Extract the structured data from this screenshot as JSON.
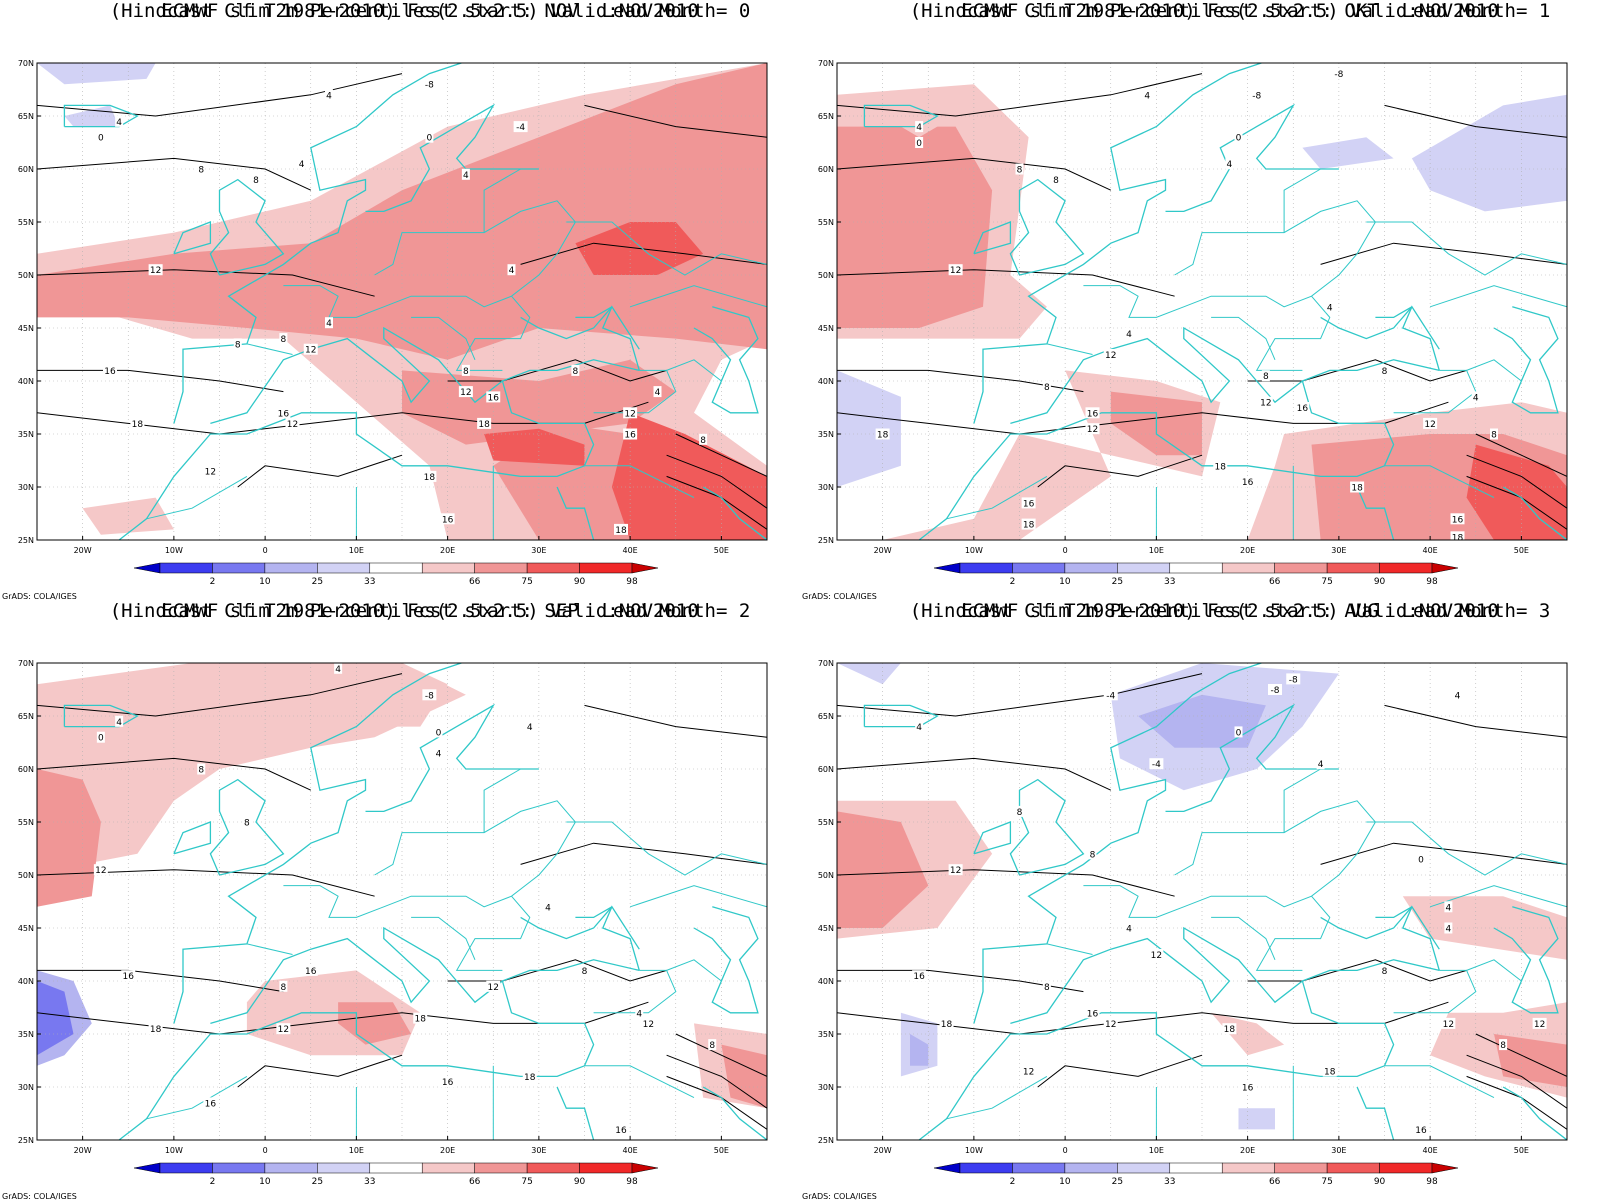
{
  "credit": "GrADS: COLA/IGES",
  "axes": {
    "lat_labels": [
      "70N",
      "65N",
      "60N",
      "55N",
      "50N",
      "45N",
      "40N",
      "35N",
      "30N",
      "25N"
    ],
    "lon_labels": [
      "20W",
      "10W",
      "0",
      "10E",
      "20E",
      "30E",
      "40E",
      "50E"
    ]
  },
  "colorbar": {
    "labels": [
      "2",
      "10",
      "25",
      "33",
      "66",
      "75",
      "90",
      "98"
    ],
    "colors": [
      "#0000c8",
      "#3c3cf0",
      "#7878f0",
      "#b4b4f0",
      "#d2d2f5",
      "#ffffff",
      "#f5c8c8",
      "#f09696",
      "#f05a5a",
      "#f02828",
      "#c80000"
    ]
  },
  "colors": {
    "coast": "#30c8c8",
    "contour": "#000000",
    "grid": "#b0b0b0"
  },
  "panels": [
    {
      "title1": "ECMWF sf T2m Percentiles(2.5x2.5) Valid:NOV2010",
      "title2": "(Hindcast Clim 1981-2010) Fcst start: NOV  Lead Month= 0",
      "contour_labels": [
        {
          "t": "4",
          "lon": 7,
          "lat": 67
        },
        {
          "t": "4",
          "lon": -16,
          "lat": 64.5
        },
        {
          "t": "0",
          "lon": -18,
          "lat": 63
        },
        {
          "t": "-8",
          "lon": 18,
          "lat": 68
        },
        {
          "t": "0",
          "lon": 18,
          "lat": 63
        },
        {
          "t": "-4",
          "lon": 28,
          "lat": 64
        },
        {
          "t": "4",
          "lon": 4,
          "lat": 60.5
        },
        {
          "t": "8",
          "lon": -7,
          "lat": 60
        },
        {
          "t": "8",
          "lon": -1,
          "lat": 59
        },
        {
          "t": "4",
          "lon": 22,
          "lat": 59.5
        },
        {
          "t": "12",
          "lon": -12,
          "lat": 50.5
        },
        {
          "t": "4",
          "lon": 27,
          "lat": 50.5
        },
        {
          "t": "4",
          "lon": 7,
          "lat": 45.5
        },
        {
          "t": "8",
          "lon": -3,
          "lat": 43.5
        },
        {
          "t": "8",
          "lon": 2,
          "lat": 44
        },
        {
          "t": "12",
          "lon": 5,
          "lat": 43
        },
        {
          "t": "16",
          "lon": -17,
          "lat": 41
        },
        {
          "t": "8",
          "lon": 22,
          "lat": 41
        },
        {
          "t": "8",
          "lon": 34,
          "lat": 41
        },
        {
          "t": "12",
          "lon": 22,
          "lat": 39
        },
        {
          "t": "16",
          "lon": 25,
          "lat": 38.5
        },
        {
          "t": "4",
          "lon": 43,
          "lat": 39
        },
        {
          "t": "18",
          "lon": -14,
          "lat": 36
        },
        {
          "t": "16",
          "lon": 2,
          "lat": 37
        },
        {
          "t": "12",
          "lon": 3,
          "lat": 36
        },
        {
          "t": "18",
          "lon": 24,
          "lat": 36
        },
        {
          "t": "12",
          "lon": 40,
          "lat": 37
        },
        {
          "t": "16",
          "lon": 40,
          "lat": 35
        },
        {
          "t": "8",
          "lon": 48,
          "lat": 34.5
        },
        {
          "t": "12",
          "lon": -6,
          "lat": 31.5
        },
        {
          "t": "18",
          "lon": 18,
          "lat": 31
        },
        {
          "t": "16",
          "lon": 20,
          "lat": 27
        },
        {
          "t": "18",
          "lon": 39,
          "lat": 26
        }
      ]
    },
    {
      "title1": "ECMWF sf T2m Percentiles(2.5x2.5) Valid:NOV2010",
      "title2": "(Hindcast Clim 1981-2010) Fcst start: OKT  Lead Month= 1",
      "contour_labels": [
        {
          "t": "4",
          "lon": 9,
          "lat": 67
        },
        {
          "t": "-8",
          "lon": 21,
          "lat": 67
        },
        {
          "t": "-8",
          "lon": 30,
          "lat": 69
        },
        {
          "t": "4",
          "lon": -16,
          "lat": 64
        },
        {
          "t": "0",
          "lon": -16,
          "lat": 62.5
        },
        {
          "t": "0",
          "lon": 19,
          "lat": 63
        },
        {
          "t": "4",
          "lon": 18,
          "lat": 60.5
        },
        {
          "t": "8",
          "lon": -5,
          "lat": 60
        },
        {
          "t": "8",
          "lon": -1,
          "lat": 59
        },
        {
          "t": "12",
          "lon": -12,
          "lat": 50.5
        },
        {
          "t": "4",
          "lon": 29,
          "lat": 47
        },
        {
          "t": "4",
          "lon": 7,
          "lat": 44.5
        },
        {
          "t": "12",
          "lon": 5,
          "lat": 42.5
        },
        {
          "t": "8",
          "lon": -2,
          "lat": 39.5
        },
        {
          "t": "8",
          "lon": 22,
          "lat": 40.5
        },
        {
          "t": "8",
          "lon": 35,
          "lat": 41
        },
        {
          "t": "12",
          "lon": 22,
          "lat": 38
        },
        {
          "t": "16",
          "lon": 26,
          "lat": 37.5
        },
        {
          "t": "4",
          "lon": 45,
          "lat": 38.5
        },
        {
          "t": "18",
          "lon": -20,
          "lat": 35
        },
        {
          "t": "16",
          "lon": 3,
          "lat": 37
        },
        {
          "t": "12",
          "lon": 3,
          "lat": 35.5
        },
        {
          "t": "12",
          "lon": 40,
          "lat": 36
        },
        {
          "t": "8",
          "lon": 47,
          "lat": 35
        },
        {
          "t": "18",
          "lon": 17,
          "lat": 32
        },
        {
          "t": "16",
          "lon": 20,
          "lat": 30.5
        },
        {
          "t": "18",
          "lon": 32,
          "lat": 30
        },
        {
          "t": "16",
          "lon": 43,
          "lat": 27
        },
        {
          "t": "18",
          "lon": 43,
          "lat": 25.3
        },
        {
          "t": "16",
          "lon": -4,
          "lat": 28.5
        },
        {
          "t": "18",
          "lon": -4,
          "lat": 26.5
        }
      ]
    },
    {
      "title1": "ECMWF sf T2m Percentiles(2.5x2.5) Valid:NOV2010",
      "title2": "(Hindcast Clim 1981-2010) Fcst start: SEP  Lead Month= 2",
      "contour_labels": [
        {
          "t": "4",
          "lon": 8,
          "lat": 69.5
        },
        {
          "t": "-8",
          "lon": 18,
          "lat": 67
        },
        {
          "t": "4",
          "lon": -16,
          "lat": 64.5
        },
        {
          "t": "0",
          "lon": -18,
          "lat": 63
        },
        {
          "t": "0",
          "lon": 19,
          "lat": 63.5
        },
        {
          "t": "4",
          "lon": 29,
          "lat": 64
        },
        {
          "t": "4",
          "lon": 19,
          "lat": 61.5
        },
        {
          "t": "8",
          "lon": -7,
          "lat": 60
        },
        {
          "t": "8",
          "lon": -2,
          "lat": 55
        },
        {
          "t": "12",
          "lon": -18,
          "lat": 50.5
        },
        {
          "t": "4",
          "lon": 31,
          "lat": 47
        },
        {
          "t": "8",
          "lon": 2,
          "lat": 39.5
        },
        {
          "t": "8",
          "lon": 35,
          "lat": 41
        },
        {
          "t": "12",
          "lon": 25,
          "lat": 39.5
        },
        {
          "t": "16",
          "lon": -15,
          "lat": 40.5
        },
        {
          "t": "16",
          "lon": 5,
          "lat": 41
        },
        {
          "t": "12",
          "lon": 2,
          "lat": 35.5
        },
        {
          "t": "18",
          "lon": -12,
          "lat": 35.5
        },
        {
          "t": "18",
          "lon": 17,
          "lat": 36.5
        },
        {
          "t": "4",
          "lon": 41,
          "lat": 37
        },
        {
          "t": "12",
          "lon": 42,
          "lat": 36
        },
        {
          "t": "8",
          "lon": 49,
          "lat": 34
        },
        {
          "t": "18",
          "lon": 29,
          "lat": 31
        },
        {
          "t": "16",
          "lon": 20,
          "lat": 30.5
        },
        {
          "t": "16",
          "lon": -6,
          "lat": 28.5
        },
        {
          "t": "16",
          "lon": 39,
          "lat": 26
        }
      ]
    },
    {
      "title1": "ECMWF sf T2m Percentiles(2.5x2.5) Valid:NOV2010",
      "title2": "(Hindcast Clim 1981-2010) Fcst start: AUG  Lead Month= 3",
      "contour_labels": [
        {
          "t": "-8",
          "lon": 25,
          "lat": 68.5
        },
        {
          "t": "-4",
          "lon": 5,
          "lat": 67
        },
        {
          "t": "-8",
          "lon": 23,
          "lat": 67.5
        },
        {
          "t": "4",
          "lon": 43,
          "lat": 67
        },
        {
          "t": "4",
          "lon": -16,
          "lat": 64
        },
        {
          "t": "0",
          "lon": 19,
          "lat": 63.5
        },
        {
          "t": "-4",
          "lon": 10,
          "lat": 60.5
        },
        {
          "t": "4",
          "lon": 28,
          "lat": 60.5
        },
        {
          "t": "8",
          "lon": -5,
          "lat": 56
        },
        {
          "t": "8",
          "lon": 3,
          "lat": 52
        },
        {
          "t": "12",
          "lon": -12,
          "lat": 50.5
        },
        {
          "t": "0",
          "lon": 39,
          "lat": 51.5
        },
        {
          "t": "4",
          "lon": 42,
          "lat": 47
        },
        {
          "t": "4",
          "lon": 7,
          "lat": 45
        },
        {
          "t": "12",
          "lon": 10,
          "lat": 42.5
        },
        {
          "t": "8",
          "lon": -2,
          "lat": 39.5
        },
        {
          "t": "8",
          "lon": 35,
          "lat": 41
        },
        {
          "t": "4",
          "lon": 42,
          "lat": 45
        },
        {
          "t": "16",
          "lon": -16,
          "lat": 40.5
        },
        {
          "t": "18",
          "lon": -13,
          "lat": 36
        },
        {
          "t": "16",
          "lon": 3,
          "lat": 37
        },
        {
          "t": "12",
          "lon": 5,
          "lat": 36
        },
        {
          "t": "18",
          "lon": 18,
          "lat": 35.5
        },
        {
          "t": "12",
          "lon": 42,
          "lat": 36
        },
        {
          "t": "12",
          "lon": 52,
          "lat": 36
        },
        {
          "t": "8",
          "lon": 48,
          "lat": 34
        },
        {
          "t": "12",
          "lon": -4,
          "lat": 31.5
        },
        {
          "t": "18",
          "lon": 29,
          "lat": 31.5
        },
        {
          "t": "16",
          "lon": 20,
          "lat": 30
        },
        {
          "t": "16",
          "lon": 39,
          "lat": 26
        }
      ]
    }
  ]
}
